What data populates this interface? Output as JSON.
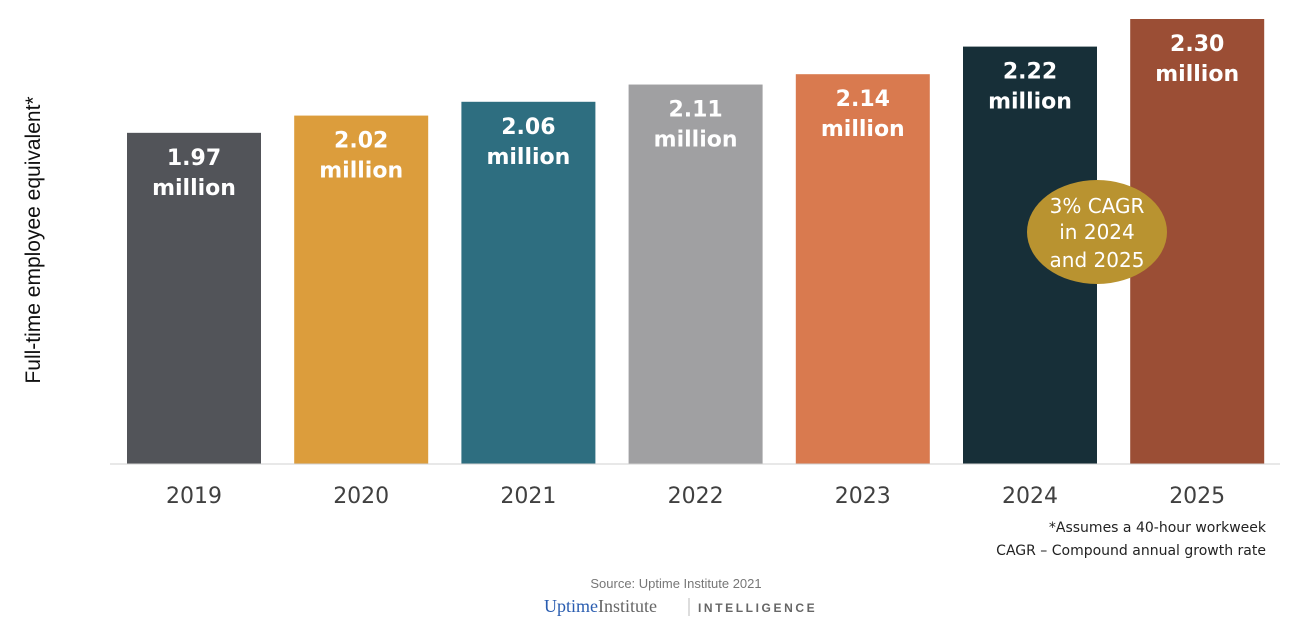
{
  "chart_data": {
    "type": "bar",
    "categories": [
      "2019",
      "2020",
      "2021",
      "2022",
      "2023",
      "2024",
      "2025"
    ],
    "values": [
      1.97,
      2.02,
      2.06,
      2.11,
      2.14,
      2.22,
      2.3
    ],
    "value_labels": [
      "1.97",
      "2.02",
      "2.06",
      "2.11",
      "2.14",
      "2.22",
      "2.30"
    ],
    "unit_label": "million",
    "ylabel": "Full-time employee equivalent*",
    "xlabel": "",
    "ylim": [
      1.01,
      2.3
    ],
    "grid": false,
    "colors": [
      "#525459",
      "#DC9D3C",
      "#2E6E80",
      "#A0A0A2",
      "#D97A4F",
      "#172F38",
      "#9B4E35"
    ],
    "annotation": {
      "lines": [
        "3% CAGR",
        "in 2024",
        "and 2025"
      ],
      "color": "#B99330"
    },
    "footnotes": [
      "*Assumes a 40-hour workweek",
      "CAGR – Compound annual growth rate"
    ]
  },
  "source": "Source: Uptime Institute 2021",
  "logo": {
    "brand_a": "Uptime",
    "brand_b": "Institute",
    "suffix": "INTELLIGENCE"
  }
}
